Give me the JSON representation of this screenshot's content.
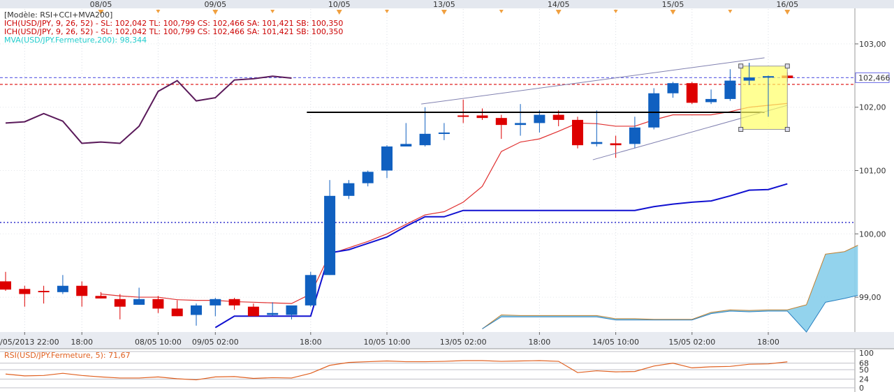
{
  "chart_data": {
    "type": "candlestick",
    "main_pane": {
      "legend": [
        {
          "text": "[Modèle: RSI+CCI+MVA200]",
          "color": "#333333"
        },
        {
          "text": "ICH(USD/JPY, 9, 26, 52) -  SL: 102,042  TL: 100,799  CS: 102,466  SA: 101,421  SB: 100,350",
          "color": "#cc0000"
        },
        {
          "text": "ICH(USD/JPY, 9, 26, 52) -  SL: 102,042  TL: 100,799  CS: 102,466  SA: 101,421  SB: 100,350",
          "color": "#cc0000"
        },
        {
          "text": "MVA(USD/JPY.Fermeture,200): 98,344",
          "color": "#22cccc"
        }
      ],
      "y_ticks": [
        "103,00",
        "102,00",
        "101,00",
        "100,00",
        "99,00"
      ],
      "y_range": [
        98.45,
        103.55
      ],
      "last_price_label": "102,466",
      "top_date_labels": [
        {
          "text": "08/05",
          "i": 5
        },
        {
          "text": "09/05",
          "i": 11
        },
        {
          "text": "10/05",
          "i": 17.5
        },
        {
          "text": "13/05",
          "i": 23
        },
        {
          "text": "14/05",
          "i": 29
        },
        {
          "text": "15/05",
          "i": 35
        },
        {
          "text": "16/05",
          "i": 41
        }
      ],
      "bottom_date_labels": [
        {
          "text": "06/05/2013 22:00",
          "i": 1
        },
        {
          "text": "18:00",
          "i": 4
        },
        {
          "text": "08/05 10:00",
          "i": 8
        },
        {
          "text": "09/05 02:00",
          "i": 11
        },
        {
          "text": "18:00",
          "i": 16
        },
        {
          "text": "10/05 10:00",
          "i": 20
        },
        {
          "text": "13/05 02:00",
          "i": 24
        },
        {
          "text": "18:00",
          "i": 28
        },
        {
          "text": "14/05 10:00",
          "i": 32
        },
        {
          "text": "15/05 02:00",
          "i": 36
        },
        {
          "text": "18:00",
          "i": 40
        }
      ],
      "candles": [
        {
          "o": 99.25,
          "h": 99.4,
          "l": 99.1,
          "c": 99.12
        },
        {
          "o": 99.13,
          "h": 99.18,
          "l": 98.85,
          "c": 99.05
        },
        {
          "o": 99.1,
          "h": 99.18,
          "l": 98.9,
          "c": 99.08
        },
        {
          "o": 99.08,
          "h": 99.35,
          "l": 99.05,
          "c": 99.18
        },
        {
          "o": 99.18,
          "h": 99.25,
          "l": 98.85,
          "c": 99.02
        },
        {
          "o": 99.02,
          "h": 99.08,
          "l": 98.98,
          "c": 98.98
        },
        {
          "o": 98.97,
          "h": 99.05,
          "l": 98.65,
          "c": 98.85
        },
        {
          "o": 98.88,
          "h": 99.15,
          "l": 98.88,
          "c": 98.97
        },
        {
          "o": 98.97,
          "h": 99.02,
          "l": 98.75,
          "c": 98.82
        },
        {
          "o": 98.82,
          "h": 98.95,
          "l": 98.7,
          "c": 98.7
        },
        {
          "o": 98.72,
          "h": 98.9,
          "l": 98.55,
          "c": 98.87
        },
        {
          "o": 98.87,
          "h": 98.99,
          "l": 98.7,
          "c": 98.97
        },
        {
          "o": 98.97,
          "h": 98.99,
          "l": 98.8,
          "c": 98.87
        },
        {
          "o": 98.85,
          "h": 98.9,
          "l": 98.7,
          "c": 98.7
        },
        {
          "o": 98.72,
          "h": 98.92,
          "l": 98.7,
          "c": 98.75
        },
        {
          "o": 98.72,
          "h": 98.85,
          "l": 98.65,
          "c": 98.87
        },
        {
          "o": 98.87,
          "h": 99.4,
          "l": 98.85,
          "c": 99.35
        },
        {
          "o": 99.35,
          "h": 100.85,
          "l": 99.35,
          "c": 100.6
        },
        {
          "o": 100.6,
          "h": 100.85,
          "l": 100.55,
          "c": 100.8
        },
        {
          "o": 100.8,
          "h": 101.0,
          "l": 100.75,
          "c": 100.98
        },
        {
          "o": 101.0,
          "h": 101.4,
          "l": 100.88,
          "c": 101.38
        },
        {
          "o": 101.38,
          "h": 101.75,
          "l": 101.38,
          "c": 101.42
        },
        {
          "o": 101.4,
          "h": 102.0,
          "l": 101.38,
          "c": 101.58
        },
        {
          "o": 101.58,
          "h": 101.75,
          "l": 101.48,
          "c": 101.6
        },
        {
          "o": 101.87,
          "h": 102.12,
          "l": 101.75,
          "c": 101.85
        },
        {
          "o": 101.87,
          "h": 101.98,
          "l": 101.8,
          "c": 101.83
        },
        {
          "o": 101.83,
          "h": 101.88,
          "l": 101.5,
          "c": 101.72
        },
        {
          "o": 101.72,
          "h": 102.05,
          "l": 101.55,
          "c": 101.75
        },
        {
          "o": 101.75,
          "h": 101.95,
          "l": 101.6,
          "c": 101.88
        },
        {
          "o": 101.88,
          "h": 101.95,
          "l": 101.7,
          "c": 101.8
        },
        {
          "o": 101.8,
          "h": 101.85,
          "l": 101.35,
          "c": 101.4
        },
        {
          "o": 101.42,
          "h": 101.95,
          "l": 101.38,
          "c": 101.45
        },
        {
          "o": 101.43,
          "h": 101.55,
          "l": 101.2,
          "c": 101.4
        },
        {
          "o": 101.42,
          "h": 101.85,
          "l": 101.35,
          "c": 101.68
        },
        {
          "o": 101.68,
          "h": 102.3,
          "l": 101.65,
          "c": 102.22
        },
        {
          "o": 102.22,
          "h": 102.4,
          "l": 102.15,
          "c": 102.38
        },
        {
          "o": 102.38,
          "h": 102.4,
          "l": 102.05,
          "c": 102.07
        },
        {
          "o": 102.08,
          "h": 102.28,
          "l": 102.05,
          "c": 102.13
        },
        {
          "o": 102.13,
          "h": 102.6,
          "l": 102.1,
          "c": 102.42
        },
        {
          "o": 102.42,
          "h": 102.7,
          "l": 102.35,
          "c": 102.47
        },
        {
          "o": 102.47,
          "h": 102.5,
          "l": 101.85,
          "c": 102.49
        },
        {
          "o": 102.5,
          "h": 102.55,
          "l": 102.4,
          "c": 102.46
        }
      ],
      "ichimoku_cs_line": [
        101.75,
        101.77,
        101.9,
        101.78,
        101.43,
        101.45,
        101.43,
        101.7,
        102.25,
        102.42,
        102.1,
        102.15,
        102.43,
        102.45,
        102.49,
        102.46
      ],
      "ichimoku_tenkan": [
        null,
        null,
        null,
        null,
        null,
        99.05,
        99.02,
        99.0,
        99.0,
        98.96,
        98.95,
        98.95,
        98.93,
        98.92,
        98.91,
        98.9,
        99.05,
        99.68,
        99.78,
        99.88,
        100.0,
        100.15,
        100.3,
        100.35,
        100.5,
        100.75,
        101.3,
        101.45,
        101.5,
        101.62,
        101.75,
        101.74,
        101.7,
        101.7,
        101.8,
        101.88,
        101.88,
        101.88,
        101.93,
        102.0,
        102.03,
        102.06
      ],
      "ichimoku_kijun": [
        null,
        null,
        null,
        null,
        null,
        null,
        null,
        null,
        null,
        null,
        null,
        98.52,
        98.7,
        98.7,
        98.7,
        98.7,
        98.7,
        99.7,
        99.75,
        99.85,
        99.95,
        100.12,
        100.27,
        100.27,
        100.37,
        100.37,
        100.37,
        100.37,
        100.37,
        100.37,
        100.37,
        100.37,
        100.37,
        100.37,
        100.43,
        100.47,
        100.5,
        100.52,
        100.6,
        100.69,
        100.7,
        100.79
      ],
      "cloud_senkou_a": [
        [
          25,
          98.5
        ],
        [
          26,
          98.72
        ],
        [
          27,
          98.71
        ],
        [
          28,
          98.71
        ],
        [
          29,
          98.71
        ],
        [
          30,
          98.71
        ],
        [
          31,
          98.71
        ],
        [
          32,
          98.66
        ],
        [
          33,
          98.66
        ],
        [
          34,
          98.65
        ],
        [
          35,
          98.65
        ],
        [
          36,
          98.65
        ],
        [
          37,
          98.76
        ],
        [
          38,
          98.8
        ],
        [
          39,
          98.79
        ],
        [
          40,
          98.8
        ],
        [
          41,
          98.8
        ],
        [
          42,
          98.88
        ],
        [
          43,
          99.68
        ],
        [
          44,
          99.72
        ],
        [
          44.7,
          99.82
        ]
      ],
      "cloud_senkou_b": [
        [
          25,
          98.5
        ],
        [
          26,
          98.69
        ],
        [
          27,
          98.69
        ],
        [
          28,
          98.69
        ],
        [
          29,
          98.69
        ],
        [
          30,
          98.69
        ],
        [
          31,
          98.69
        ],
        [
          32,
          98.64
        ],
        [
          33,
          98.64
        ],
        [
          34,
          98.64
        ],
        [
          35,
          98.64
        ],
        [
          36,
          98.64
        ],
        [
          37,
          98.74
        ],
        [
          38,
          98.78
        ],
        [
          39,
          98.77
        ],
        [
          40,
          98.78
        ],
        [
          41,
          98.78
        ],
        [
          42,
          98.45
        ],
        [
          43,
          98.92
        ],
        [
          44,
          98.98
        ],
        [
          44.7,
          99.03
        ]
      ],
      "cloud_color": "#87ceeb",
      "hlines": [
        {
          "value": 102.466,
          "color": "#6a6ae6",
          "style": "dashed"
        },
        {
          "value": 102.36,
          "color": "#e02020",
          "style": "dashed"
        },
        {
          "value": 100.18,
          "color": "#2020c8",
          "style": "dotted"
        }
      ],
      "black_line": {
        "i1": 15.8,
        "i2": 39.8,
        "value": 101.92
      },
      "channel_upper": {
        "i1": 21.8,
        "v1": 102.05,
        "i2": 39.8,
        "v2": 102.78
      },
      "channel_lower": {
        "i1": 30.8,
        "v1": 101.17,
        "i2": 41.0,
        "v2": 102.03
      },
      "highlight_box": {
        "i1": 39.0,
        "i2": 41.0,
        "v1": 102.65,
        "v2": 101.65,
        "color": "#ffff66"
      },
      "colors": {
        "up": "#1060c0",
        "down": "#dd0000",
        "tenkan": "#e03030",
        "kijun": "#1010d0",
        "cs": "#5a1a5a"
      }
    },
    "rsi_pane": {
      "title": "RSI(USD/JPY.Fermeture, 5): 71,67",
      "y_ticks": [
        "100",
        "68",
        "50",
        "24",
        "0"
      ],
      "values": [
        38,
        33,
        34,
        40,
        34,
        30,
        27,
        27,
        30,
        25,
        22,
        30,
        31,
        26,
        28,
        27,
        40,
        62,
        70,
        72,
        74,
        72,
        72,
        73,
        75,
        75,
        73,
        74,
        75,
        73,
        42,
        47,
        44,
        45,
        60,
        68,
        55,
        58,
        59,
        65,
        66,
        71.67
      ],
      "color": "#e06020"
    }
  }
}
